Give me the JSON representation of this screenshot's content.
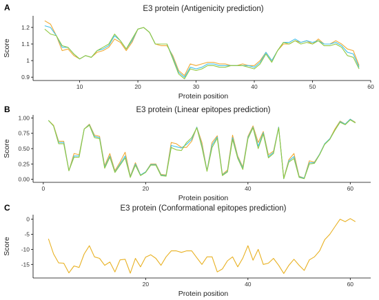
{
  "chart_data": [
    {
      "type": "line",
      "panel": "A",
      "title": "E3 protein (Antigenicity prediction)",
      "xlabel": "Protein position",
      "ylabel": "Score",
      "xlim": [
        2,
        60
      ],
      "ylim": [
        0.88,
        1.27
      ],
      "xticks": [
        10,
        20,
        30,
        40,
        50,
        60
      ],
      "yticks": [
        0.9,
        1.0,
        1.1,
        1.2
      ],
      "grid": false,
      "x": [
        4,
        5,
        6,
        7,
        8,
        9,
        10,
        11,
        12,
        13,
        14,
        15,
        16,
        17,
        18,
        19,
        20,
        21,
        22,
        23,
        24,
        25,
        26,
        27,
        28,
        29,
        30,
        31,
        32,
        33,
        34,
        35,
        36,
        37,
        38,
        39,
        40,
        41,
        42,
        43,
        44,
        45,
        46,
        47,
        48,
        49,
        50,
        51,
        52,
        53,
        54,
        55,
        56,
        57,
        58
      ],
      "series": [
        {
          "color": "#f0a830",
          "values": [
            1.24,
            1.22,
            1.15,
            1.06,
            1.07,
            1.03,
            1.01,
            1.03,
            1.02,
            1.05,
            1.06,
            1.08,
            1.13,
            1.11,
            1.06,
            1.11,
            1.19,
            1.2,
            1.17,
            1.1,
            1.09,
            1.09,
            1.03,
            0.94,
            0.91,
            0.98,
            0.97,
            0.98,
            0.99,
            0.99,
            0.98,
            0.98,
            0.97,
            0.97,
            0.98,
            0.97,
            0.97,
            1.0,
            1.05,
            1.0,
            1.06,
            1.1,
            1.1,
            1.12,
            1.11,
            1.12,
            1.1,
            1.13,
            1.1,
            1.1,
            1.12,
            1.1,
            1.07,
            1.06,
            0.97
          ]
        },
        {
          "color": "#40c0e8",
          "values": [
            1.21,
            1.2,
            1.15,
            1.08,
            1.08,
            1.04,
            1.01,
            1.03,
            1.02,
            1.06,
            1.07,
            1.09,
            1.15,
            1.12,
            1.07,
            1.12,
            1.19,
            1.2,
            1.17,
            1.1,
            1.1,
            1.1,
            1.02,
            0.93,
            0.9,
            0.96,
            0.95,
            0.96,
            0.98,
            0.98,
            0.97,
            0.97,
            0.97,
            0.97,
            0.97,
            0.97,
            0.96,
            0.99,
            1.05,
            1.0,
            1.06,
            1.11,
            1.11,
            1.13,
            1.11,
            1.12,
            1.11,
            1.12,
            1.1,
            1.1,
            1.11,
            1.09,
            1.05,
            1.04,
            0.96
          ]
        },
        {
          "color": "#90c840",
          "values": [
            1.19,
            1.16,
            1.15,
            1.09,
            1.08,
            1.04,
            1.01,
            1.03,
            1.02,
            1.06,
            1.08,
            1.1,
            1.16,
            1.12,
            1.07,
            1.13,
            1.19,
            1.2,
            1.17,
            1.1,
            1.1,
            1.1,
            1.01,
            0.92,
            0.89,
            0.95,
            0.94,
            0.95,
            0.97,
            0.97,
            0.96,
            0.96,
            0.97,
            0.97,
            0.97,
            0.96,
            0.95,
            0.98,
            1.04,
            0.99,
            1.06,
            1.11,
            1.1,
            1.12,
            1.1,
            1.11,
            1.1,
            1.12,
            1.09,
            1.09,
            1.1,
            1.08,
            1.03,
            1.02,
            0.95
          ]
        }
      ]
    },
    {
      "type": "line",
      "panel": "B",
      "title": "E3 protein (Linear epitopes prediction)",
      "xlabel": "Protein position",
      "ylabel": "Score",
      "xlim": [
        -2,
        64
      ],
      "ylim": [
        -0.05,
        1.05
      ],
      "xticks": [
        0,
        20,
        40,
        60
      ],
      "yticks": [
        0.0,
        0.25,
        0.5,
        0.75,
        1.0
      ],
      "ytick_labels": [
        "0.00",
        "0.25",
        "0.50",
        "0.75",
        "1.00"
      ],
      "grid": false,
      "x": [
        1,
        2,
        3,
        4,
        5,
        6,
        7,
        8,
        9,
        10,
        11,
        12,
        13,
        14,
        15,
        16,
        17,
        18,
        19,
        20,
        21,
        22,
        23,
        24,
        25,
        26,
        27,
        28,
        29,
        30,
        31,
        32,
        33,
        34,
        35,
        36,
        37,
        38,
        39,
        40,
        41,
        42,
        43,
        44,
        45,
        46,
        47,
        48,
        49,
        50,
        51,
        52,
        53,
        54,
        55,
        56,
        57,
        58,
        59,
        60,
        61
      ],
      "series": [
        {
          "color": "#f0a830",
          "values": [
            0.96,
            0.88,
            0.62,
            0.62,
            0.14,
            0.42,
            0.4,
            0.82,
            0.9,
            0.72,
            0.7,
            0.22,
            0.42,
            0.14,
            0.28,
            0.44,
            0.05,
            0.27,
            0.07,
            0.12,
            0.25,
            0.25,
            0.08,
            0.07,
            0.6,
            0.58,
            0.52,
            0.52,
            0.62,
            0.85,
            0.6,
            0.14,
            0.6,
            0.71,
            0.08,
            0.15,
            0.72,
            0.38,
            0.2,
            0.7,
            0.87,
            0.6,
            0.78,
            0.4,
            0.46,
            0.85,
            0.02,
            0.32,
            0.42,
            0.05,
            0.02,
            0.3,
            0.28,
            0.41,
            0.58,
            0.66,
            0.82,
            0.95,
            0.9,
            0.98,
            0.93
          ]
        },
        {
          "color": "#40c0e8",
          "values": [
            0.96,
            0.87,
            0.6,
            0.6,
            0.14,
            0.38,
            0.38,
            0.82,
            0.89,
            0.7,
            0.68,
            0.2,
            0.38,
            0.12,
            0.25,
            0.38,
            0.04,
            0.25,
            0.07,
            0.12,
            0.24,
            0.24,
            0.07,
            0.06,
            0.55,
            0.53,
            0.51,
            0.57,
            0.65,
            0.85,
            0.55,
            0.14,
            0.56,
            0.69,
            0.07,
            0.13,
            0.68,
            0.36,
            0.18,
            0.68,
            0.85,
            0.54,
            0.76,
            0.37,
            0.44,
            0.85,
            0.01,
            0.3,
            0.37,
            0.04,
            0.02,
            0.27,
            0.27,
            0.41,
            0.58,
            0.66,
            0.8,
            0.94,
            0.9,
            0.98,
            0.92
          ]
        },
        {
          "color": "#90c840",
          "values": [
            0.96,
            0.87,
            0.58,
            0.58,
            0.14,
            0.36,
            0.36,
            0.82,
            0.88,
            0.68,
            0.66,
            0.18,
            0.36,
            0.11,
            0.23,
            0.35,
            0.03,
            0.23,
            0.06,
            0.11,
            0.23,
            0.23,
            0.06,
            0.05,
            0.52,
            0.48,
            0.47,
            0.6,
            0.68,
            0.84,
            0.52,
            0.13,
            0.52,
            0.67,
            0.06,
            0.12,
            0.65,
            0.34,
            0.16,
            0.66,
            0.84,
            0.5,
            0.74,
            0.35,
            0.42,
            0.84,
            0.01,
            0.28,
            0.34,
            0.03,
            0.01,
            0.25,
            0.26,
            0.4,
            0.57,
            0.65,
            0.8,
            0.93,
            0.89,
            0.97,
            0.92
          ]
        }
      ]
    },
    {
      "type": "line",
      "panel": "C",
      "title": "E3 protein (Conformational epitopes prediction)",
      "xlabel": "Protein position",
      "ylabel": "Score",
      "xlim": [
        -2,
        64
      ],
      "ylim": [
        -19.5,
        1.5
      ],
      "xticks": [
        20,
        40,
        60
      ],
      "yticks": [
        0,
        -5,
        -10,
        -15
      ],
      "grid": false,
      "x": [
        1,
        2,
        3,
        4,
        5,
        6,
        7,
        8,
        9,
        10,
        11,
        12,
        13,
        14,
        15,
        16,
        17,
        18,
        19,
        20,
        21,
        22,
        23,
        24,
        25,
        26,
        27,
        28,
        29,
        30,
        31,
        32,
        33,
        34,
        35,
        36,
        37,
        38,
        39,
        40,
        41,
        42,
        43,
        44,
        45,
        46,
        47,
        48,
        49,
        50,
        51,
        52,
        53,
        54,
        55,
        56,
        57,
        58,
        59,
        60,
        61
      ],
      "series": [
        {
          "color": "#e8b020",
          "values": [
            -6.5,
            -11.5,
            -14.5,
            -14.6,
            -17.8,
            -15.5,
            -16.0,
            -11.5,
            -8.8,
            -12.5,
            -13.0,
            -15.3,
            -14.2,
            -17.5,
            -13.5,
            -13.3,
            -17.9,
            -13.0,
            -15.8,
            -12.6,
            -11.8,
            -13.0,
            -15.3,
            -12.5,
            -10.5,
            -10.5,
            -11.0,
            -10.5,
            -10.5,
            -12.8,
            -15.0,
            -12.5,
            -12.5,
            -17.5,
            -16.5,
            -13.8,
            -12.5,
            -15.8,
            -12.9,
            -8.8,
            -13.6,
            -10.0,
            -15.0,
            -14.6,
            -13.0,
            -15.3,
            -18.0,
            -15.3,
            -13.3,
            -15.3,
            -17.0,
            -13.5,
            -12.5,
            -10.5,
            -6.8,
            -5.0,
            -2.5,
            0.0,
            -0.8,
            0.2,
            -0.8
          ]
        }
      ]
    }
  ]
}
